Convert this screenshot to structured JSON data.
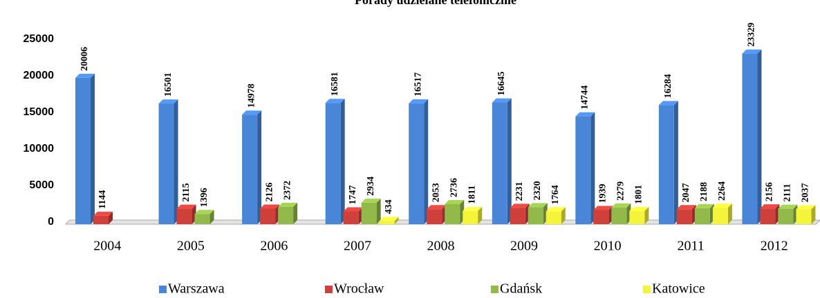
{
  "chart_data": {
    "type": "bar3d",
    "title": "Porady udzielane telefonicznie",
    "categories": [
      "2004",
      "2005",
      "2006",
      "2007",
      "2008",
      "2009",
      "2010",
      "2011",
      "2012"
    ],
    "series": [
      {
        "name": "Warszawa",
        "color": "#4a86d8",
        "values": [
          20006,
          16501,
          14978,
          16581,
          16517,
          16645,
          14744,
          16284,
          23329
        ]
      },
      {
        "name": "Wrocław",
        "color": "#d0403a",
        "values": [
          1144,
          2115,
          2126,
          1747,
          2053,
          2231,
          1939,
          2047,
          2156
        ]
      },
      {
        "name": "Gdańsk",
        "color": "#92b94a",
        "values": [
          null,
          1396,
          2372,
          2934,
          2736,
          2320,
          2279,
          2188,
          2111
        ]
      },
      {
        "name": "Katowice",
        "color": "#f4f43a",
        "values": [
          null,
          null,
          null,
          434,
          1811,
          1764,
          1801,
          2264,
          2037
        ]
      }
    ],
    "ylim": [
      0,
      25000
    ],
    "yticks": [
      0,
      5000,
      10000,
      15000,
      20000,
      25000
    ],
    "legend": "bottom"
  }
}
